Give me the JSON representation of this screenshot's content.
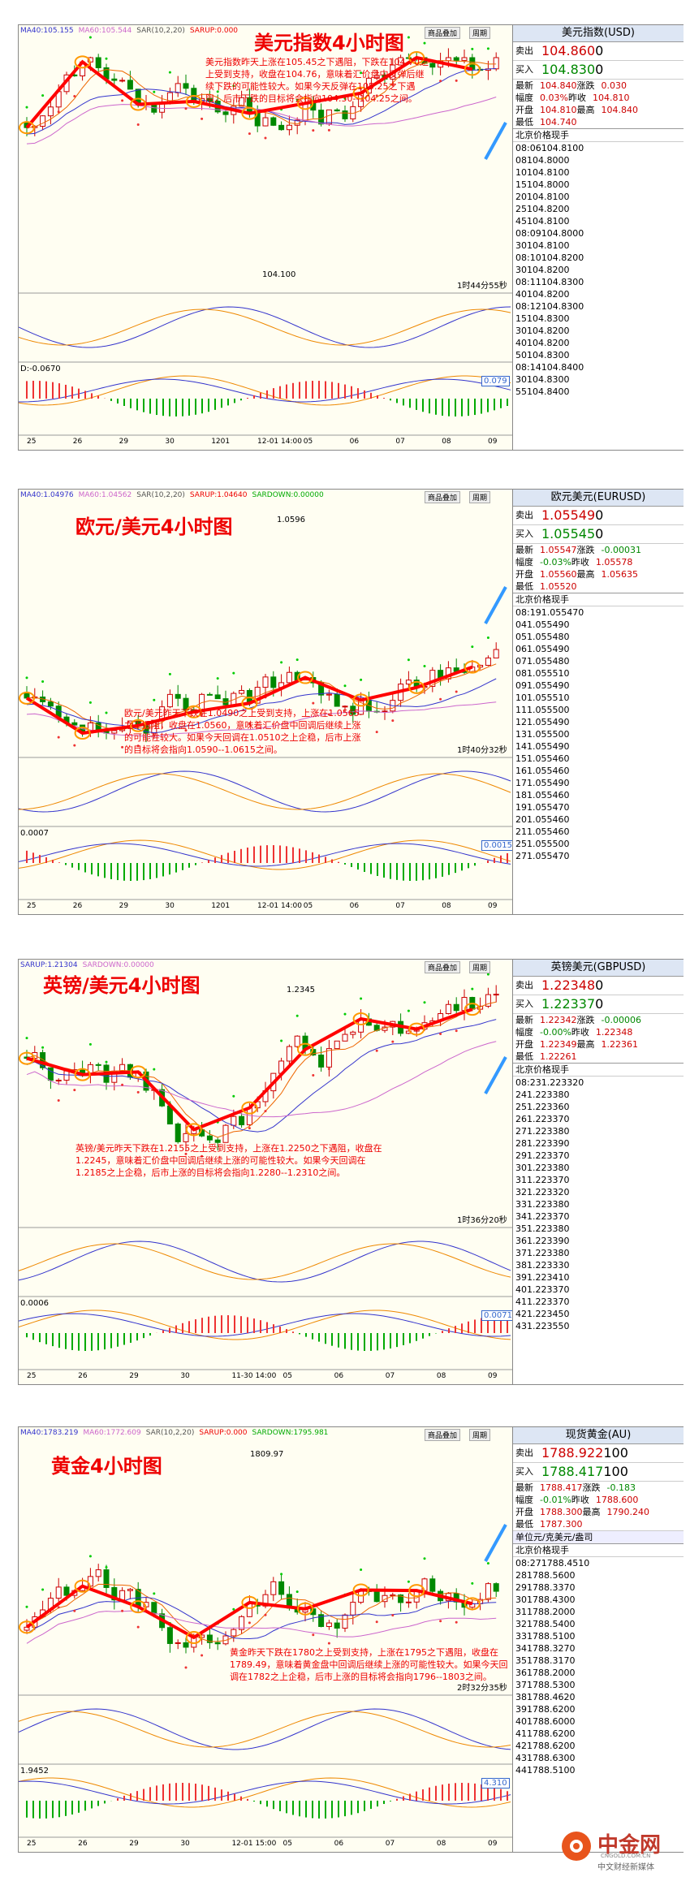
{
  "panels": [
    {
      "title": "美元指数4小时图",
      "indicators": [
        "MA40:105.155",
        "MA60:105.544",
        "SAR(10,2,20)",
        "SARUP:0.000"
      ],
      "toolbar": [
        "商品叠加",
        "周期"
      ],
      "note": "美元指数昨天上涨在105.45之下遇阻，下跌在104.70之上受到支持，收盘在104.76，意味着汇价盘中反弹后继续下跌的可能性较大。如果今天反弹在105.25之下遇阻，后市下跌的目标将会指向104.50--104.25之间。",
      "price_label": "104.100",
      "countdown": "1时44分55秒",
      "macd_label": "D:-0.0670",
      "macd_box": "0.079",
      "x_labels": [
        "25",
        "26",
        "29",
        "30",
        "1201",
        "12-01 14:00",
        "05",
        "06",
        "07",
        "08",
        "09"
      ],
      "quote": {
        "name": "美元指数(USD)",
        "sell": [
          "卖出",
          "104.860",
          "0"
        ],
        "buy": [
          "买入",
          "104.830",
          "0"
        ],
        "stats": [
          [
            "最新",
            "104.840",
            "涨跌",
            "0.030"
          ],
          [
            "幅度",
            "0.03%",
            "昨收",
            "104.810"
          ],
          [
            "开盘",
            "104.810",
            "最高",
            "104.840"
          ],
          [
            "最低",
            "104.740"
          ]
        ],
        "columns": [
          "北京",
          "价格",
          "现手"
        ],
        "ticks": [
          [
            "08:06",
            "104.810",
            "0"
          ],
          [
            "08",
            "104.800",
            "0"
          ],
          [
            "10",
            "104.810",
            "0"
          ],
          [
            "15",
            "104.800",
            "0"
          ],
          [
            "20",
            "104.810",
            "0"
          ],
          [
            "25",
            "104.820",
            "0"
          ],
          [
            "45",
            "104.810",
            "0"
          ],
          [
            "08:09",
            "104.800",
            "0"
          ],
          [
            "30",
            "104.810",
            "0"
          ],
          [
            "08:10",
            "104.820",
            "0"
          ],
          [
            "30",
            "104.820",
            "0"
          ],
          [
            "08:11",
            "104.830",
            "0"
          ],
          [
            "40",
            "104.820",
            "0"
          ],
          [
            "08:12",
            "104.830",
            "0"
          ],
          [
            "15",
            "104.830",
            "0"
          ],
          [
            "30",
            "104.820",
            "0"
          ],
          [
            "40",
            "104.820",
            "0"
          ],
          [
            "50",
            "104.830",
            "0"
          ],
          [
            "08:14",
            "104.840",
            "0"
          ],
          [
            "30",
            "104.830",
            "0"
          ],
          [
            "55",
            "104.840",
            "0"
          ]
        ]
      }
    },
    {
      "title": "欧元/美元4小时图",
      "indicators": [
        "MA40:1.04976",
        "MA60:1.04562",
        "SAR(10,2,20)",
        "SARUP:1.04640",
        "SARDOWN:0.00000"
      ],
      "toolbar": [
        "商品叠加",
        "周期"
      ],
      "note": "欧元/美元昨天下跌在1.0490之上受到支持，上涨在1.0565之下遇阻，收盘在1.0560，意味着汇价盘中回调后继续上涨的可能性较大。如果今天回调在1.0510之上企稳，后市上涨的目标将会指向1.0590--1.0615之间。",
      "price_label": "1.0596",
      "countdown": "1时40分32秒",
      "macd_label": "0.0007",
      "macd_box": "0.00157",
      "x_labels": [
        "25",
        "26",
        "29",
        "30",
        "1201",
        "12-01 14:00",
        "05",
        "06",
        "07",
        "08",
        "09"
      ],
      "quote": {
        "name": "欧元美元(EURUSD)",
        "sell": [
          "卖出",
          "1.05549",
          "0"
        ],
        "buy": [
          "买入",
          "1.05545",
          "0"
        ],
        "stats": [
          [
            "最新",
            "1.05547",
            "涨跌",
            "-0.00031"
          ],
          [
            "幅度",
            "-0.03%",
            "昨收",
            "1.05578"
          ],
          [
            "开盘",
            "1.05560",
            "最高",
            "1.05635"
          ],
          [
            "最低",
            "1.05520"
          ]
        ],
        "columns": [
          "北京",
          "价格",
          "现手"
        ],
        "ticks": [
          [
            "08:19",
            "1.05547",
            "0"
          ],
          [
            "04",
            "1.05549",
            "0"
          ],
          [
            "05",
            "1.05548",
            "0"
          ],
          [
            "06",
            "1.05549",
            "0"
          ],
          [
            "07",
            "1.05548",
            "0"
          ],
          [
            "08",
            "1.05551",
            "0"
          ],
          [
            "09",
            "1.05549",
            "0"
          ],
          [
            "10",
            "1.05551",
            "0"
          ],
          [
            "11",
            "1.05550",
            "0"
          ],
          [
            "12",
            "1.05549",
            "0"
          ],
          [
            "13",
            "1.05550",
            "0"
          ],
          [
            "14",
            "1.05549",
            "0"
          ],
          [
            "15",
            "1.05546",
            "0"
          ],
          [
            "16",
            "1.05546",
            "0"
          ],
          [
            "17",
            "1.05549",
            "0"
          ],
          [
            "18",
            "1.05546",
            "0"
          ],
          [
            "19",
            "1.05547",
            "0"
          ],
          [
            "20",
            "1.05546",
            "0"
          ],
          [
            "21",
            "1.05546",
            "0"
          ],
          [
            "25",
            "1.05550",
            "0"
          ],
          [
            "27",
            "1.05547",
            "0"
          ]
        ]
      }
    },
    {
      "title": "英镑/美元4小时图",
      "indicators": [
        "SARUP:1.21304",
        "SARDOWN:0.00000"
      ],
      "toolbar": [
        "商品叠加",
        "周期"
      ],
      "note": "英镑/美元昨天下跌在1.2155之上受到支持，上涨在1.2250之下遇阻，收盘在1.2245，意味着汇价盘中回调后继续上涨的可能性较大。如果今天回调在1.2185之上企稳，后市上涨的目标将会指向1.2280--1.2310之间。",
      "price_label": "1.2345",
      "countdown": "1时36分20秒",
      "macd_label": "0.0006",
      "macd_box": "0.00714",
      "x_labels": [
        "25",
        "26",
        "29",
        "30",
        "11-30 14:00",
        "05",
        "06",
        "07",
        "08",
        "09"
      ],
      "quote": {
        "name": "英镑美元(GBPUSD)",
        "sell": [
          "卖出",
          "1.22348",
          "0"
        ],
        "buy": [
          "买入",
          "1.22337",
          "0"
        ],
        "stats": [
          [
            "最新",
            "1.22342",
            "涨跌",
            "-0.00006"
          ],
          [
            "幅度",
            "-0.00%",
            "昨收",
            "1.22348"
          ],
          [
            "开盘",
            "1.22349",
            "最高",
            "1.22361"
          ],
          [
            "最低",
            "1.22261"
          ]
        ],
        "columns": [
          "北京",
          "价格",
          "现手"
        ],
        "ticks": [
          [
            "08:23",
            "1.22332",
            "0"
          ],
          [
            "24",
            "1.22338",
            "0"
          ],
          [
            "25",
            "1.22336",
            "0"
          ],
          [
            "26",
            "1.22337",
            "0"
          ],
          [
            "27",
            "1.22338",
            "0"
          ],
          [
            "28",
            "1.22339",
            "0"
          ],
          [
            "29",
            "1.22337",
            "0"
          ],
          [
            "30",
            "1.22338",
            "0"
          ],
          [
            "31",
            "1.22337",
            "0"
          ],
          [
            "32",
            "1.22332",
            "0"
          ],
          [
            "33",
            "1.22338",
            "0"
          ],
          [
            "34",
            "1.22337",
            "0"
          ],
          [
            "35",
            "1.22338",
            "0"
          ],
          [
            "36",
            "1.22339",
            "0"
          ],
          [
            "37",
            "1.22338",
            "0"
          ],
          [
            "38",
            "1.22333",
            "0"
          ],
          [
            "39",
            "1.22341",
            "0"
          ],
          [
            "40",
            "1.22337",
            "0"
          ],
          [
            "41",
            "1.22337",
            "0"
          ],
          [
            "42",
            "1.22345",
            "0"
          ],
          [
            "43",
            "1.22355",
            "0"
          ]
        ]
      }
    },
    {
      "title": "黄金4小时图",
      "indicators": [
        "MA40:1783.219",
        "MA60:1772.609",
        "SAR(10,2,20)",
        "SARUP:0.000",
        "SARDOWN:1795.981"
      ],
      "toolbar": [
        "商品叠加",
        "周期"
      ],
      "note": "黄金昨天下跌在1780之上受到支持，上涨在1795之下遇阻，收盘在1789.49，意味着黄金盘中回调后继续上涨的可能性较大。如果今天回调在1782之上企稳，后市上涨的目标将会指向1796--1803之间。",
      "price_label": "1809.97",
      "countdown": "2时32分35秒",
      "macd_label": "1.9452",
      "macd_box": "4.310",
      "x_labels": [
        "25",
        "26",
        "29",
        "30",
        "12-01 15:00",
        "05",
        "06",
        "07",
        "08",
        "09"
      ],
      "quote": {
        "name": "现货黄金(AU)",
        "sell": [
          "卖出",
          "1788.922",
          "100"
        ],
        "buy": [
          "买入",
          "1788.417",
          "100"
        ],
        "stats": [
          [
            "最新",
            "1788.417",
            "涨跌",
            "-0.183"
          ],
          [
            "幅度",
            "-0.01%",
            "昨收",
            "1788.600"
          ],
          [
            "开盘",
            "1788.300",
            "最高",
            "1790.240"
          ],
          [
            "最低",
            "1787.300"
          ]
        ],
        "unit_row": [
          "单位",
          "元/克",
          "美元/盎司"
        ],
        "columns": [
          "北京",
          "价格",
          "现手"
        ],
        "ticks": [
          [
            "08:27",
            "1788.451",
            "0"
          ],
          [
            "28",
            "1788.560",
            "0"
          ],
          [
            "29",
            "1788.337",
            "0"
          ],
          [
            "30",
            "1788.430",
            "0"
          ],
          [
            "31",
            "1788.200",
            "0"
          ],
          [
            "32",
            "1788.540",
            "0"
          ],
          [
            "33",
            "1788.510",
            "0"
          ],
          [
            "34",
            "1788.327",
            "0"
          ],
          [
            "35",
            "1788.317",
            "0"
          ],
          [
            "36",
            "1788.200",
            "0"
          ],
          [
            "37",
            "1788.530",
            "0"
          ],
          [
            "38",
            "1788.462",
            "0"
          ],
          [
            "39",
            "1788.620",
            "0"
          ],
          [
            "40",
            "1788.600",
            "0"
          ],
          [
            "41",
            "1788.620",
            "0"
          ],
          [
            "42",
            "1788.620",
            "0"
          ],
          [
            "43",
            "1788.630",
            "0"
          ],
          [
            "44",
            "1788.510",
            "0"
          ]
        ]
      }
    }
  ],
  "logo": {
    "name": "中金网",
    "domain": "CNGOLD.COM.CN",
    "tagline": "中文财经新媒体"
  }
}
